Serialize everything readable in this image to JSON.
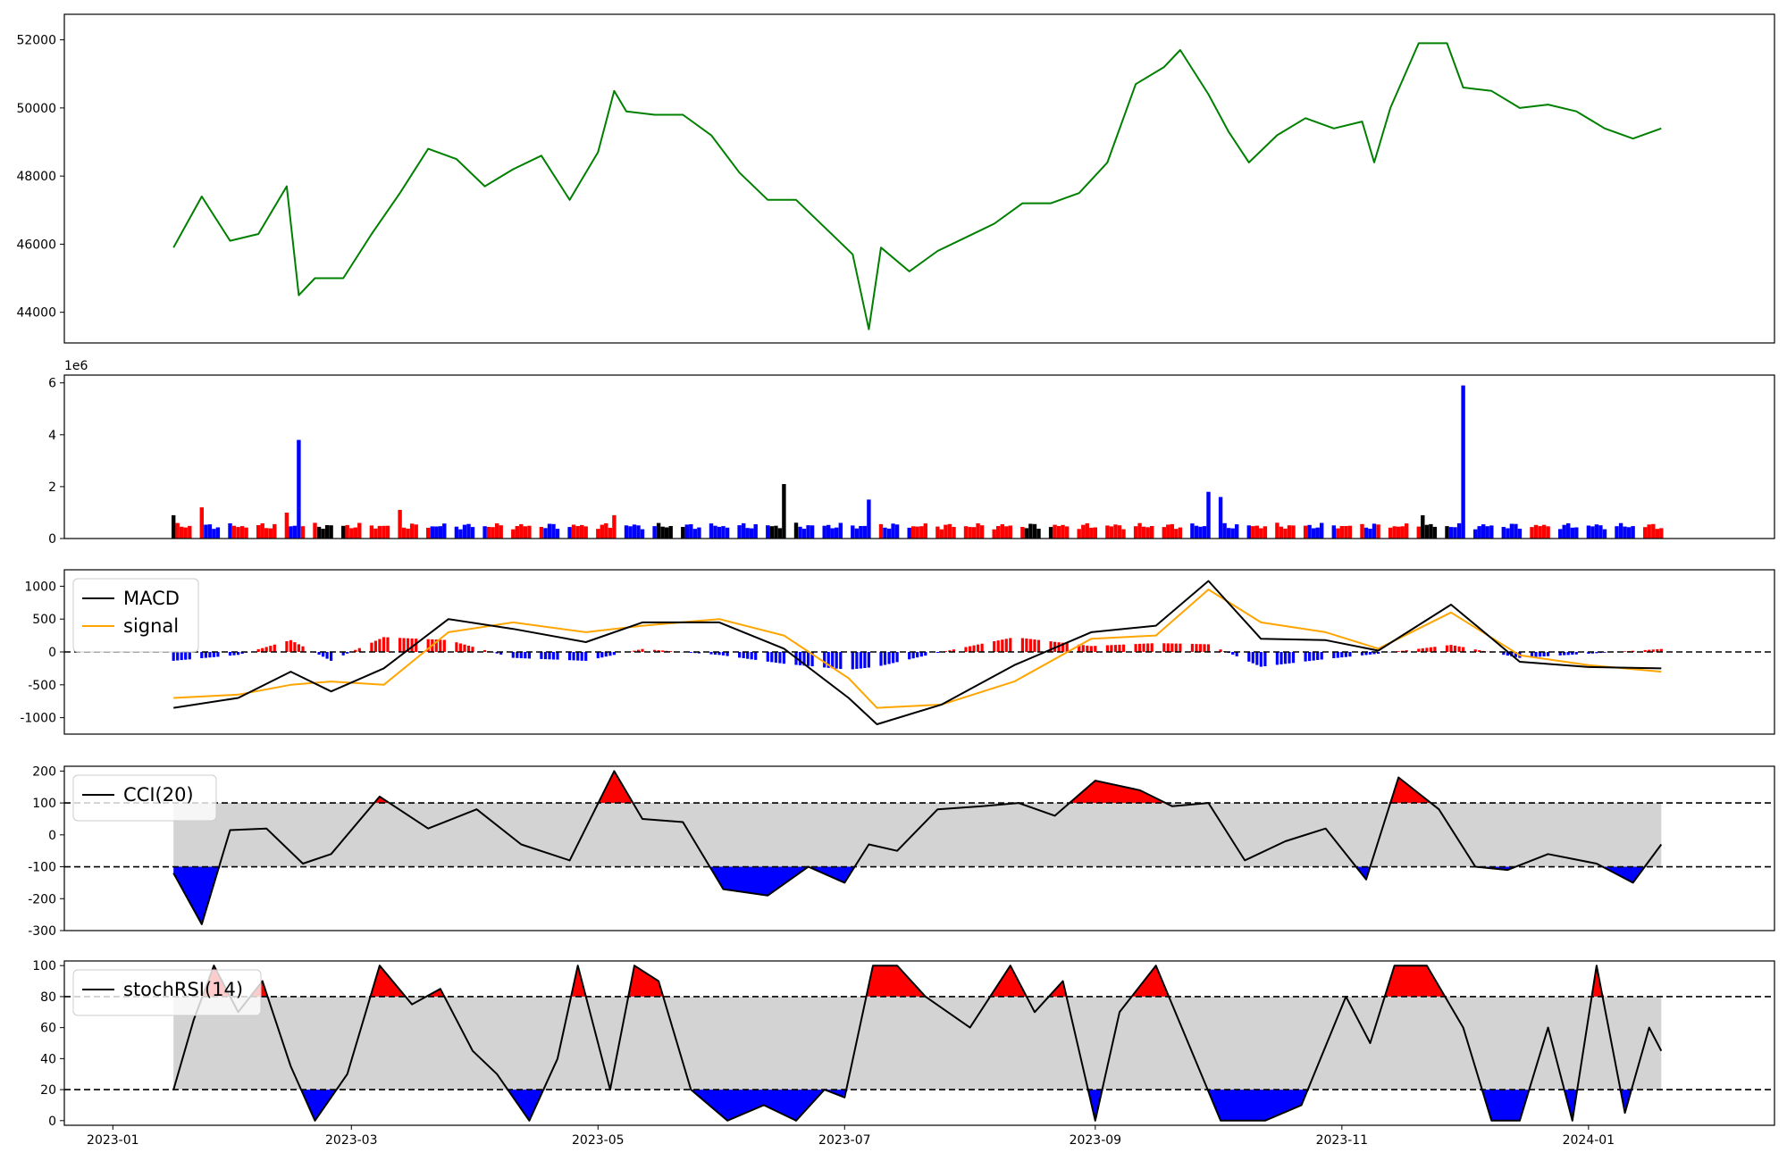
{
  "chart_data": [
    {
      "type": "line",
      "panel": "price",
      "ylim": [
        43100,
        52750
      ],
      "yticks": [
        44000,
        46000,
        48000,
        50000,
        52000
      ],
      "color": "#008000",
      "grid": false,
      "x": [
        "2023-01-16",
        "2023-01-23",
        "2023-01-30",
        "2023-02-06",
        "2023-02-13",
        "2023-02-16",
        "2023-02-20",
        "2023-02-27",
        "2023-03-06",
        "2023-03-13",
        "2023-03-20",
        "2023-03-27",
        "2023-04-03",
        "2023-04-10",
        "2023-04-17",
        "2023-04-24",
        "2023-05-01",
        "2023-05-05",
        "2023-05-08",
        "2023-05-15",
        "2023-05-22",
        "2023-05-29",
        "2023-06-05",
        "2023-06-12",
        "2023-06-19",
        "2023-06-26",
        "2023-07-03",
        "2023-07-07",
        "2023-07-10",
        "2023-07-17",
        "2023-07-24",
        "2023-07-31",
        "2023-08-07",
        "2023-08-14",
        "2023-08-21",
        "2023-08-28",
        "2023-09-04",
        "2023-09-11",
        "2023-09-18",
        "2023-09-22",
        "2023-09-29",
        "2023-10-04",
        "2023-10-09",
        "2023-10-16",
        "2023-10-23",
        "2023-10-30",
        "2023-11-06",
        "2023-11-09",
        "2023-11-13",
        "2023-11-20",
        "2023-11-27",
        "2023-12-01",
        "2023-12-08",
        "2023-12-15",
        "2023-12-22",
        "2023-12-29",
        "2024-01-05",
        "2024-01-12",
        "2024-01-19"
      ],
      "values": [
        45900,
        47400,
        46100,
        46300,
        47700,
        44500,
        45000,
        45000,
        46300,
        47500,
        48800,
        48500,
        47700,
        48200,
        48600,
        47300,
        48700,
        50500,
        49900,
        49800,
        49800,
        49200,
        48100,
        47300,
        47300,
        46500,
        45700,
        43500,
        45900,
        45200,
        45800,
        46200,
        46600,
        47200,
        47200,
        47500,
        48400,
        50700,
        51200,
        51700,
        50400,
        49300,
        48400,
        49200,
        49700,
        49400,
        49600,
        48400,
        50000,
        51900,
        51900,
        50600,
        50500,
        50000,
        50100,
        49900,
        49400,
        49100,
        49400
      ]
    },
    {
      "type": "bar",
      "panel": "volume",
      "ylim": [
        0,
        6300000
      ],
      "yticks": [
        0,
        2,
        4,
        6
      ],
      "exponent_label": "1e6",
      "up_color": "#ff0000",
      "down_color": "#0000ff",
      "flat_color": "#000000",
      "x": [
        "2023-01-16",
        "2023-01-23",
        "2023-02-13",
        "2023-02-16",
        "2023-03-13",
        "2023-05-05",
        "2023-06-16",
        "2023-07-07",
        "2023-09-29",
        "2023-10-02",
        "2023-11-21",
        "2023-12-01",
        "2024-01-19"
      ],
      "values": [
        900000,
        1200000,
        1000000,
        3800000,
        1100000,
        900000,
        2100000,
        1500000,
        1800000,
        1600000,
        900000,
        5900000,
        400000
      ]
    },
    {
      "type": "line",
      "panel": "macd",
      "ylim": [
        -1250,
        1250
      ],
      "yticks": [
        -1000,
        -500,
        0,
        500,
        1000
      ],
      "reference_lines": [
        0
      ],
      "legend_placement": "upper-left",
      "hist_up_color": "#ff0000",
      "hist_down_color": "#0000ff",
      "x": [
        "2023-01-16",
        "2023-02-01",
        "2023-02-14",
        "2023-02-24",
        "2023-03-09",
        "2023-03-25",
        "2023-04-10",
        "2023-04-28",
        "2023-05-12",
        "2023-05-31",
        "2023-06-16",
        "2023-07-02",
        "2023-07-09",
        "2023-07-25",
        "2023-08-12",
        "2023-08-31",
        "2023-09-16",
        "2023-09-29",
        "2023-10-12",
        "2023-10-28",
        "2023-11-10",
        "2023-11-28",
        "2023-12-15",
        "2024-01-01",
        "2024-01-19"
      ],
      "series": [
        {
          "name": "MACD",
          "color": "#000000",
          "values": [
            -850,
            -700,
            -300,
            -600,
            -250,
            500,
            350,
            150,
            450,
            450,
            50,
            -700,
            -1100,
            -800,
            -200,
            300,
            400,
            1080,
            200,
            180,
            20,
            720,
            -150,
            -230,
            -250
          ]
        },
        {
          "name": "signal",
          "color": "#ffa500",
          "values": [
            -700,
            -650,
            -500,
            -450,
            -500,
            300,
            450,
            300,
            400,
            500,
            250,
            -400,
            -850,
            -800,
            -450,
            200,
            250,
            950,
            450,
            300,
            50,
            600,
            -50,
            -200,
            -300
          ]
        }
      ]
    },
    {
      "type": "line",
      "panel": "cci",
      "ylim": [
        -300,
        215
      ],
      "yticks": [
        -300,
        -200,
        -100,
        0,
        100,
        200
      ],
      "reference_lines": [
        -100,
        100
      ],
      "band_color": "#d3d3d3",
      "over_color": "#ff0000",
      "under_color": "#0000ff",
      "legend_placement": "upper-left",
      "x": [
        "2023-01-16",
        "2023-01-23",
        "2023-01-30",
        "2023-02-08",
        "2023-02-17",
        "2023-02-24",
        "2023-03-08",
        "2023-03-20",
        "2023-04-01",
        "2023-04-12",
        "2023-04-24",
        "2023-05-05",
        "2023-05-12",
        "2023-05-22",
        "2023-06-01",
        "2023-06-12",
        "2023-06-22",
        "2023-07-01",
        "2023-07-07",
        "2023-07-14",
        "2023-07-24",
        "2023-08-04",
        "2023-08-13",
        "2023-08-22",
        "2023-09-01",
        "2023-09-12",
        "2023-09-20",
        "2023-09-29",
        "2023-10-08",
        "2023-10-18",
        "2023-10-28",
        "2023-11-07",
        "2023-11-15",
        "2023-11-25",
        "2023-12-04",
        "2023-12-12",
        "2023-12-22",
        "2024-01-03",
        "2024-01-12",
        "2024-01-19"
      ],
      "series": [
        {
          "name": "CCI(20)",
          "color": "#000000",
          "values": [
            -120,
            -280,
            15,
            20,
            -90,
            -60,
            120,
            20,
            80,
            -30,
            -80,
            200,
            50,
            40,
            -170,
            -190,
            -100,
            -150,
            -30,
            -50,
            80,
            90,
            100,
            60,
            170,
            140,
            90,
            100,
            -80,
            -20,
            20,
            -140,
            180,
            80,
            -100,
            -110,
            -60,
            -90,
            -150,
            -30
          ]
        }
      ]
    },
    {
      "type": "line",
      "panel": "stochrsi",
      "ylim": [
        -3,
        103
      ],
      "yticks": [
        0,
        20,
        40,
        60,
        80,
        100
      ],
      "reference_lines": [
        20,
        80
      ],
      "band_color": "#d3d3d3",
      "over_color": "#ff0000",
      "under_color": "#0000ff",
      "legend_placement": "upper-left",
      "x": [
        "2023-01-16",
        "2023-01-21",
        "2023-01-26",
        "2023-02-01",
        "2023-02-07",
        "2023-02-14",
        "2023-02-20",
        "2023-02-28",
        "2023-03-08",
        "2023-03-16",
        "2023-03-23",
        "2023-03-31",
        "2023-04-06",
        "2023-04-14",
        "2023-04-21",
        "2023-04-26",
        "2023-05-04",
        "2023-05-10",
        "2023-05-16",
        "2023-05-24",
        "2023-06-02",
        "2023-06-11",
        "2023-06-19",
        "2023-06-26",
        "2023-07-01",
        "2023-07-08",
        "2023-07-14",
        "2023-07-21",
        "2023-08-01",
        "2023-08-11",
        "2023-08-17",
        "2023-08-24",
        "2023-09-01",
        "2023-09-07",
        "2023-09-16",
        "2023-09-24",
        "2023-10-02",
        "2023-10-13",
        "2023-10-22",
        "2023-11-02",
        "2023-11-08",
        "2023-11-14",
        "2023-11-22",
        "2023-12-01",
        "2023-12-08",
        "2023-12-15",
        "2023-12-22",
        "2023-12-28",
        "2024-01-03",
        "2024-01-10",
        "2024-01-16",
        "2024-01-19"
      ],
      "series": [
        {
          "name": "stochRSI(14)",
          "color": "#000000",
          "values": [
            20,
            65,
            100,
            70,
            90,
            35,
            0,
            30,
            100,
            75,
            85,
            45,
            30,
            0,
            40,
            100,
            20,
            100,
            90,
            20,
            0,
            10,
            0,
            20,
            15,
            100,
            100,
            80,
            60,
            100,
            70,
            90,
            0,
            70,
            100,
            50,
            0,
            0,
            10,
            80,
            50,
            100,
            100,
            60,
            0,
            0,
            60,
            0,
            100,
            5,
            60,
            45
          ]
        }
      ]
    }
  ],
  "x_axis": {
    "tick_labels": [
      "2023-01",
      "2023-03",
      "2023-05",
      "2023-07",
      "2023-09",
      "2023-11",
      "2024-01"
    ],
    "tick_dates": [
      "2023-01-01",
      "2023-03-01",
      "2023-05-01",
      "2023-07-01",
      "2023-09-01",
      "2023-11-01",
      "2024-01-01"
    ],
    "range": [
      "2022-12-20",
      "2024-02-16"
    ]
  }
}
